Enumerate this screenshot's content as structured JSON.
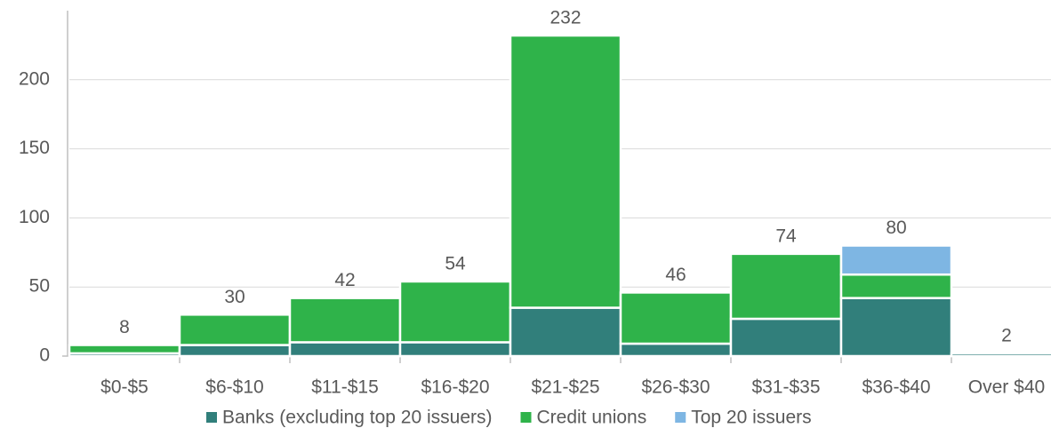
{
  "chart_data": {
    "type": "stacked_bar",
    "categories": [
      "$0-$5",
      "$6-$10",
      "$11-$15",
      "$16-$20",
      "$21-$25",
      "$26-$30",
      "$31-$35",
      "$36-$40",
      "Over $40"
    ],
    "series": [
      {
        "name": "Banks (excluding top 20 issuers)",
        "color": "#317f7b",
        "values": [
          2,
          8,
          10,
          10,
          35,
          9,
          27,
          42,
          2
        ]
      },
      {
        "name": "Credit unions",
        "color": "#2fb34a",
        "values": [
          6,
          22,
          32,
          44,
          197,
          37,
          47,
          17,
          0
        ]
      },
      {
        "name": "Top 20 issuers",
        "color": "#7eb6e3",
        "values": [
          0,
          0,
          0,
          0,
          0,
          0,
          0,
          21,
          0
        ]
      }
    ],
    "total_labels": [
      "8",
      "30",
      "42",
      "54",
      "232",
      "46",
      "74",
      "80",
      "2"
    ],
    "ylim": [
      0,
      250
    ],
    "yticks": [
      0,
      50,
      100,
      150,
      200
    ],
    "grid": true,
    "legend": "bottom"
  }
}
